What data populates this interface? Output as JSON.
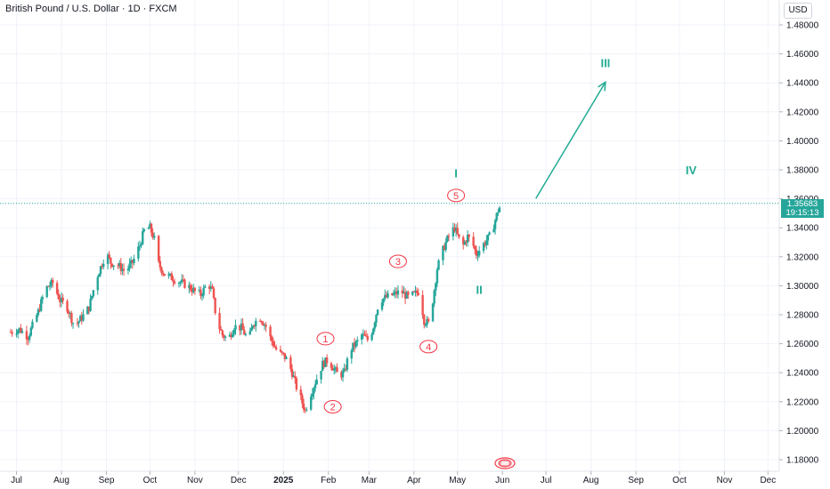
{
  "header": {
    "title": "British Pound / U.S. Dollar · 1D · FXCM",
    "currency": "USD"
  },
  "price_label": {
    "price": "1.35683",
    "countdown": "19:15:13"
  },
  "colors": {
    "up": "#26a69a",
    "down": "#ef5350",
    "wave_minor": "#f23645",
    "wave_major": "#22ab94"
  },
  "chart_data": {
    "type": "candlestick",
    "ylim": [
      1.17,
      1.49
    ],
    "yticks": [
      1.18,
      1.2,
      1.22,
      1.24,
      1.26,
      1.28,
      1.3,
      1.32,
      1.34,
      1.36,
      1.38,
      1.4,
      1.42,
      1.44,
      1.46,
      1.48
    ],
    "ytick_labels": [
      "1.18000",
      "1.20000",
      "1.22000",
      "1.24000",
      "1.26000",
      "1.28000",
      "1.30000",
      "1.32000",
      "1.34000",
      "1.36000",
      "1.38000",
      "1.40000",
      "1.42000",
      "1.44000",
      "1.46000",
      "1.48000"
    ],
    "xticks": [
      {
        "label": "Jul",
        "day": 0
      },
      {
        "label": "Aug",
        "day": 31
      },
      {
        "label": "Sep",
        "day": 62
      },
      {
        "label": "Oct",
        "day": 92
      },
      {
        "label": "Nov",
        "day": 123
      },
      {
        "label": "Dec",
        "day": 153
      },
      {
        "label": "2025",
        "day": 184,
        "bold": true
      },
      {
        "label": "Feb",
        "day": 215
      },
      {
        "label": "Mar",
        "day": 243
      },
      {
        "label": "Apr",
        "day": 274
      },
      {
        "label": "May",
        "day": 304
      },
      {
        "label": "Jun",
        "day": 335
      },
      {
        "label": "Jul",
        "day": 365
      },
      {
        "label": "Aug",
        "day": 396
      },
      {
        "label": "Sep",
        "day": 427
      },
      {
        "label": "Oct",
        "day": 457
      },
      {
        "label": "Nov",
        "day": 488
      },
      {
        "label": "Dec",
        "day": 518
      }
    ],
    "close_path": [
      [
        -4,
        1.268
      ],
      [
        2,
        1.27
      ],
      [
        8,
        1.265
      ],
      [
        15,
        1.282
      ],
      [
        20,
        1.298
      ],
      [
        25,
        1.302
      ],
      [
        30,
        1.29
      ],
      [
        35,
        1.285
      ],
      [
        40,
        1.272
      ],
      [
        45,
        1.278
      ],
      [
        50,
        1.285
      ],
      [
        55,
        1.305
      ],
      [
        60,
        1.318
      ],
      [
        62,
        1.322
      ],
      [
        65,
        1.316
      ],
      [
        70,
        1.314
      ],
      [
        75,
        1.31
      ],
      [
        80,
        1.316
      ],
      [
        85,
        1.328
      ],
      [
        88,
        1.338
      ],
      [
        92,
        1.34
      ],
      [
        95,
        1.332
      ],
      [
        98,
        1.315
      ],
      [
        102,
        1.308
      ],
      [
        110,
        1.304
      ],
      [
        118,
        1.3
      ],
      [
        123,
        1.296
      ],
      [
        127,
        1.294
      ],
      [
        132,
        1.302
      ],
      [
        135,
        1.296
      ],
      [
        138,
        1.276
      ],
      [
        142,
        1.266
      ],
      [
        146,
        1.263
      ],
      [
        150,
        1.272
      ],
      [
        155,
        1.271
      ],
      [
        160,
        1.262
      ],
      [
        163,
        1.274
      ],
      [
        168,
        1.278
      ],
      [
        172,
        1.272
      ],
      [
        175,
        1.264
      ],
      [
        180,
        1.254
      ],
      [
        184,
        1.252
      ],
      [
        187,
        1.248
      ],
      [
        190,
        1.24
      ],
      [
        193,
        1.23
      ],
      [
        196,
        1.222
      ],
      [
        199,
        1.214
      ],
      [
        203,
        1.226
      ],
      [
        207,
        1.236
      ],
      [
        211,
        1.246
      ],
      [
        215,
        1.249
      ],
      [
        218,
        1.244
      ],
      [
        222,
        1.238
      ],
      [
        226,
        1.24
      ],
      [
        230,
        1.256
      ],
      [
        234,
        1.26
      ],
      [
        238,
        1.266
      ],
      [
        243,
        1.262
      ],
      [
        246,
        1.272
      ],
      [
        250,
        1.29
      ],
      [
        255,
        1.292
      ],
      [
        260,
        1.294
      ],
      [
        265,
        1.296
      ],
      [
        270,
        1.292
      ],
      [
        274,
        1.294
      ],
      [
        277,
        1.296
      ],
      [
        279,
        1.288
      ],
      [
        281,
        1.276
      ],
      [
        284,
        1.274
      ],
      [
        287,
        1.29
      ],
      [
        290,
        1.312
      ],
      [
        293,
        1.322
      ],
      [
        296,
        1.33
      ],
      [
        299,
        1.336
      ],
      [
        302,
        1.34
      ],
      [
        305,
        1.332
      ],
      [
        308,
        1.328
      ],
      [
        311,
        1.334
      ],
      [
        314,
        1.33
      ],
      [
        317,
        1.322
      ],
      [
        320,
        1.326
      ],
      [
        323,
        1.33
      ],
      [
        326,
        1.334
      ],
      [
        329,
        1.342
      ],
      [
        332,
        1.352
      ],
      [
        334,
        1.356
      ]
    ],
    "annotations": {
      "minor_waves": [
        {
          "label": "1",
          "day": 213,
          "price": 1.2635
        },
        {
          "label": "2",
          "day": 218,
          "price": 1.2165
        },
        {
          "label": "3",
          "day": 263,
          "price": 1.3168
        },
        {
          "label": "4",
          "day": 284,
          "price": 1.258
        },
        {
          "label": "5",
          "day": 303,
          "price": 1.3623
        }
      ],
      "major_waves": [
        {
          "label": "I",
          "day": 303,
          "price": 1.378
        },
        {
          "label": "II",
          "day": 319,
          "price": 1.2975
        },
        {
          "label": "III",
          "day": 406,
          "price": 1.454
        },
        {
          "label": "IV",
          "day": 465,
          "price": 1.38
        }
      ],
      "projection_arrow": {
        "from": [
          358,
          1.3602
        ],
        "to": [
          406,
          1.4405
        ]
      },
      "last_price_line": 1.35683
    }
  }
}
